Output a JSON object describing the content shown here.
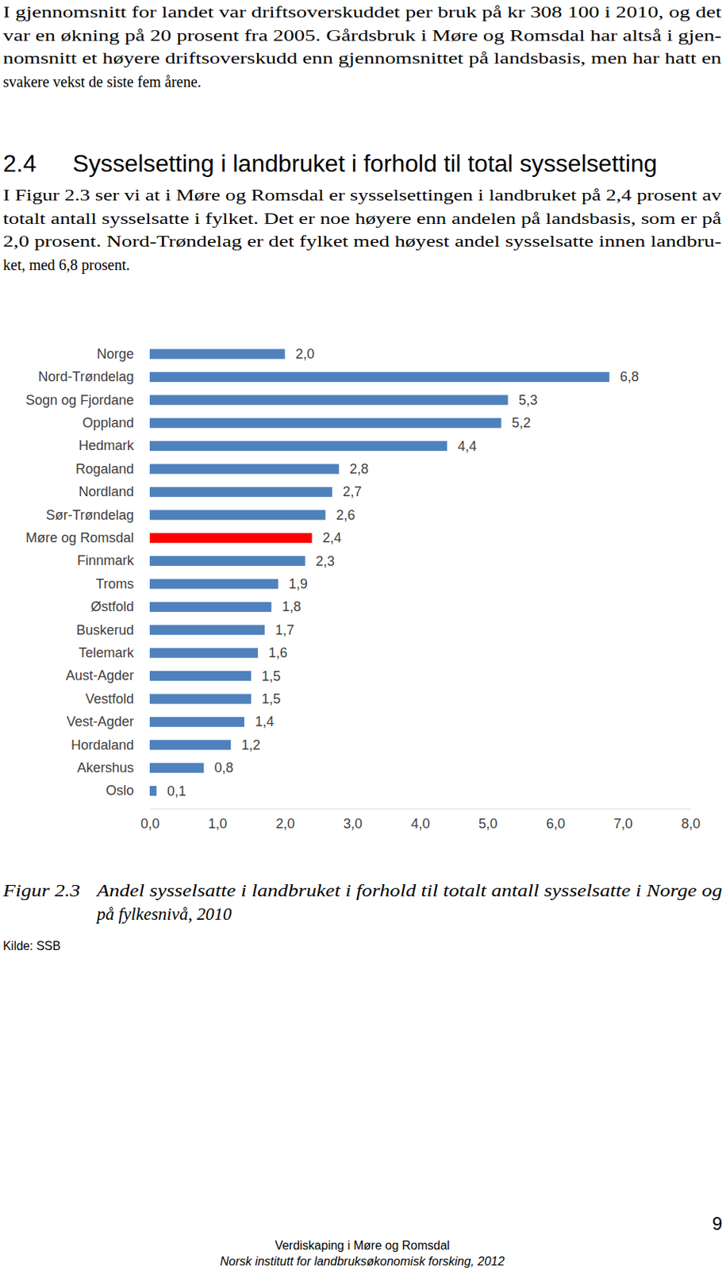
{
  "intro": {
    "lines": [
      "I gjennomsnitt for landet var driftsoverskuddet per bruk på kr 308 100 i 2010, og det",
      "var en økning på 20 prosent fra 2005. Gårdsbruk i Møre og Romsdal har altså i gjen-",
      "nomsnitt et høyere driftsoverskudd enn gjennomsnittet på landsbasis, men har hatt en",
      "svakere vekst de siste fem årene."
    ]
  },
  "section": {
    "number": "2.4",
    "title": "Sysselsetting i landbruket i forhold til total sysselsetting"
  },
  "body": {
    "lines": [
      "I Figur 2.3 ser vi at i Møre og Romsdal er sysselsettingen i landbruket på 2,4 prosent av",
      "totalt antall sysselsatte i fylket. Det er noe høyere enn andelen på landsbasis, som er på",
      "2,0 prosent. Nord-Trøndelag er det fylket med høyest andel sysselsatte innen landbru-",
      "ket, med 6,8 prosent."
    ]
  },
  "chart_data": {
    "type": "bar",
    "orientation": "horizontal",
    "categories": [
      "Norge",
      "Nord-Trøndelag",
      "Sogn og Fjordane",
      "Oppland",
      "Hedmark",
      "Rogaland",
      "Nordland",
      "Sør-Trøndelag",
      "Møre og Romsdal",
      "Finnmark",
      "Troms",
      "Østfold",
      "Buskerud",
      "Telemark",
      "Aust-Agder",
      "Vestfold",
      "Vest-Agder",
      "Hordaland",
      "Akershus",
      "Oslo"
    ],
    "values": [
      2.0,
      6.8,
      5.3,
      5.2,
      4.4,
      2.8,
      2.7,
      2.6,
      2.4,
      2.3,
      1.9,
      1.8,
      1.7,
      1.6,
      1.5,
      1.5,
      1.4,
      1.2,
      0.8,
      0.1
    ],
    "value_labels": [
      "2,0",
      "6,8",
      "5,3",
      "5,2",
      "4,4",
      "2,8",
      "2,7",
      "2,6",
      "2,4",
      "2,3",
      "1,9",
      "1,8",
      "1,7",
      "1,6",
      "1,5",
      "1,5",
      "1,4",
      "1,2",
      "0,8",
      "0,1"
    ],
    "colors": [
      "#4f81bd",
      "#4f81bd",
      "#4f81bd",
      "#4f81bd",
      "#4f81bd",
      "#4f81bd",
      "#4f81bd",
      "#4f81bd",
      "#ff0000",
      "#4f81bd",
      "#4f81bd",
      "#4f81bd",
      "#4f81bd",
      "#4f81bd",
      "#4f81bd",
      "#4f81bd",
      "#4f81bd",
      "#4f81bd",
      "#4f81bd",
      "#4f81bd"
    ],
    "xlim": [
      0,
      8
    ],
    "xticks": [
      {
        "value": 0,
        "label": "0,0"
      },
      {
        "value": 1,
        "label": "1,0"
      },
      {
        "value": 2,
        "label": "2,0"
      },
      {
        "value": 3,
        "label": "3,0"
      },
      {
        "value": 4,
        "label": "4,0"
      },
      {
        "value": 5,
        "label": "5,0"
      },
      {
        "value": 6,
        "label": "6,0"
      },
      {
        "value": 7,
        "label": "7,0"
      },
      {
        "value": 8,
        "label": "8,0"
      }
    ],
    "data_labels": true,
    "grid": false
  },
  "caption": {
    "label": "Figur 2.3",
    "lines": [
      "Andel sysselsatte i landbruket i forhold til totalt antall sysselsatte i Norge og",
      "på fylkesnivå, 2010"
    ]
  },
  "source": "Kilde: SSB",
  "page_number": 9,
  "footer": {
    "lines": [
      "Verdiskaping i Møre og Romsdal",
      "Norsk institutt for landbruksøkonomisk forsking, 2012"
    ]
  }
}
